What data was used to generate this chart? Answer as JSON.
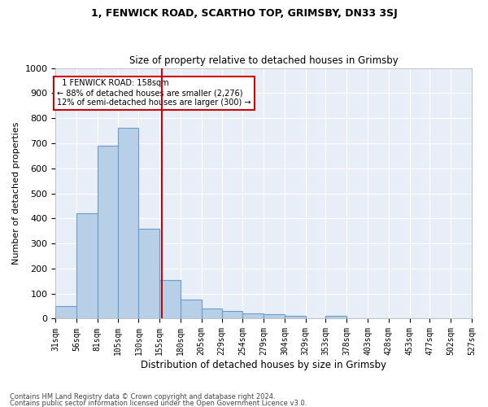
{
  "title1": "1, FENWICK ROAD, SCARTHO TOP, GRIMSBY, DN33 3SJ",
  "title2": "Size of property relative to detached houses in Grimsby",
  "xlabel": "Distribution of detached houses by size in Grimsby",
  "ylabel": "Number of detached properties",
  "footer1": "Contains HM Land Registry data © Crown copyright and database right 2024.",
  "footer2": "Contains public sector information licensed under the Open Government Licence v3.0.",
  "annotation_line1": "  1 FENWICK ROAD: 158sqm",
  "annotation_line2": "← 88% of detached houses are smaller (2,276)",
  "annotation_line3": "12% of semi-detached houses are larger (300) →",
  "property_size": 158,
  "bin_edges": [
    31,
    56,
    81,
    105,
    130,
    155,
    180,
    205,
    229,
    254,
    279,
    304,
    329,
    353,
    378,
    403,
    428,
    453,
    477,
    502,
    527
  ],
  "tick_labels": [
    "31sqm",
    "56sqm",
    "81sqm",
    "105sqm",
    "130sqm",
    "155sqm",
    "180sqm",
    "205sqm",
    "229sqm",
    "254sqm",
    "279sqm",
    "304sqm",
    "329sqm",
    "353sqm",
    "378sqm",
    "403sqm",
    "428sqm",
    "453sqm",
    "477sqm",
    "502sqm",
    "527sqm"
  ],
  "bar_values": [
    50,
    420,
    690,
    760,
    360,
    155,
    75,
    40,
    30,
    20,
    18,
    10,
    0,
    10,
    0,
    0,
    0,
    0,
    0,
    0
  ],
  "bar_color": "#b8cfe8",
  "bar_edge_color": "#6a9dc8",
  "vline_color": "#cc0000",
  "annotation_box_edge_color": "#cc0000",
  "background_color": "#e8eef8",
  "ylim": [
    0,
    1000
  ],
  "yticks": [
    0,
    100,
    200,
    300,
    400,
    500,
    600,
    700,
    800,
    900,
    1000
  ]
}
